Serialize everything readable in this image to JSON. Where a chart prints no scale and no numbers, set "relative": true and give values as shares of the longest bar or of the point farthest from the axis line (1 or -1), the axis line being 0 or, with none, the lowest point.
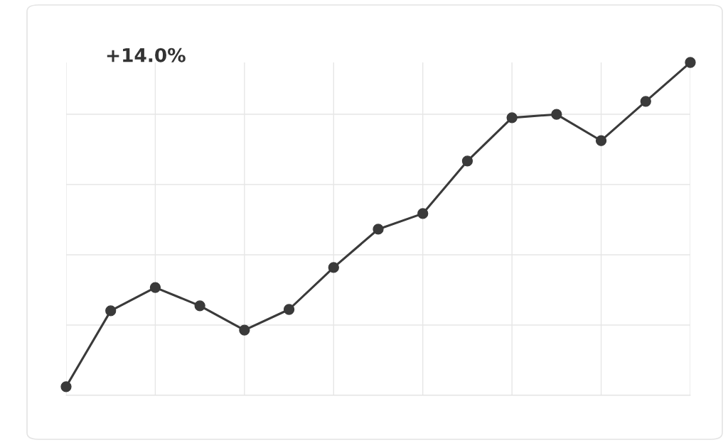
{
  "chart_data": {
    "type": "line",
    "relative": true,
    "categories": [
      null,
      null,
      null,
      null,
      null,
      null,
      null,
      null,
      null,
      null,
      null,
      null,
      null,
      null,
      null
    ],
    "series": [
      {
        "color": "#3a3a3a",
        "values": [
          0.026,
          0.254,
          0.324,
          0.269,
          0.196,
          0.258,
          0.384,
          0.499,
          0.546,
          0.704,
          0.834,
          0.844,
          0.765,
          0.883,
          1
        ]
      }
    ],
    "annotations": [
      "+14.0%"
    ],
    "marker": "circle",
    "line_style": "solid",
    "grid": true
  }
}
